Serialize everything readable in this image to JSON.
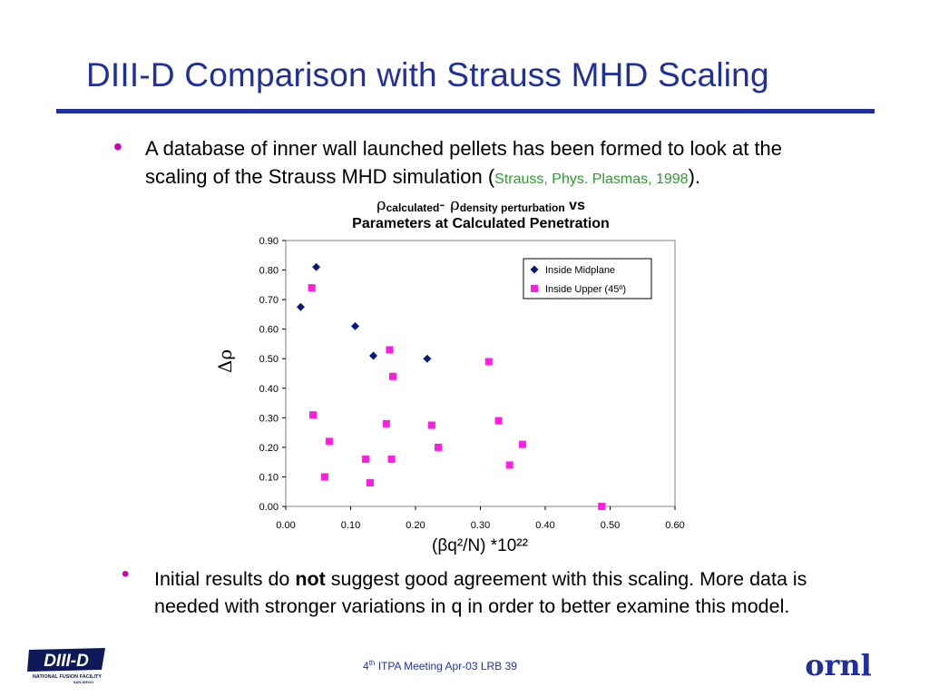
{
  "slide": {
    "title": "DIII-D Comparison with Strauss MHD Scaling",
    "bullet1_text": "A database of inner wall launched pellets has been formed to look at the scaling of the Strauss MHD simulation (",
    "bullet1_ref": "Strauss, Phys. Plasmas, 1998",
    "bullet1_end": ").",
    "bullet2_pre": "Initial results do ",
    "bullet2_bold": "not",
    "bullet2_post": " suggest good agreement with this scaling. More data is needed with stronger variations in q in order to better examine this model.",
    "footer": {
      "sup": "th",
      "text_after_sup": " ITPA Meeting  Apr-03   LRB     39",
      "number": "4",
      "left_logo_text": "DIII-D",
      "left_logo_sub": "NATIONAL FUSION FACILITY",
      "left_logo_sub2": "SAN DIEGO",
      "right_logo_text": "ornl"
    },
    "accent_color": "#1f2f9c",
    "bullet_color": "#cc00aa",
    "ref_color": "#2a9d2a"
  },
  "chart_data": {
    "type": "scatter",
    "title_line1_a": "ρ",
    "title_line1_sub_a": "calculated",
    "title_line1_dash": "- ρ",
    "title_line1_sub_b": "density perturbation",
    "title_line1_vs": " vs",
    "title_line2": "Parameters at Calculated Penetration",
    "ylabel": "Δρ",
    "xlabel": "(βq²/N) *10²²",
    "xlim": [
      0,
      0.6
    ],
    "ylim": [
      0,
      0.9
    ],
    "xticks": [
      "0.00",
      "0.10",
      "0.20",
      "0.30",
      "0.40",
      "0.50",
      "0.60"
    ],
    "yticks": [
      "0.00",
      "0.10",
      "0.20",
      "0.30",
      "0.40",
      "0.50",
      "0.60",
      "0.70",
      "0.80",
      "0.90"
    ],
    "grid": false,
    "legend_position": "top-right",
    "series": [
      {
        "name": "Inside Midplane",
        "marker": "diamond",
        "color": "#0a1a7a",
        "points": [
          [
            0.023,
            0.675
          ],
          [
            0.047,
            0.81
          ],
          [
            0.107,
            0.61
          ],
          [
            0.135,
            0.51
          ],
          [
            0.218,
            0.5
          ]
        ]
      },
      {
        "name": "Inside Upper (45º)",
        "marker": "square",
        "color": "#ff1ee0",
        "points": [
          [
            0.04,
            0.74
          ],
          [
            0.042,
            0.31
          ],
          [
            0.06,
            0.1
          ],
          [
            0.067,
            0.22
          ],
          [
            0.123,
            0.16
          ],
          [
            0.13,
            0.08
          ],
          [
            0.155,
            0.28
          ],
          [
            0.16,
            0.53
          ],
          [
            0.163,
            0.16
          ],
          [
            0.165,
            0.44
          ],
          [
            0.225,
            0.275
          ],
          [
            0.235,
            0.2
          ],
          [
            0.313,
            0.49
          ],
          [
            0.328,
            0.29
          ],
          [
            0.345,
            0.14
          ],
          [
            0.365,
            0.21
          ],
          [
            0.487,
            0.0
          ]
        ]
      }
    ]
  }
}
